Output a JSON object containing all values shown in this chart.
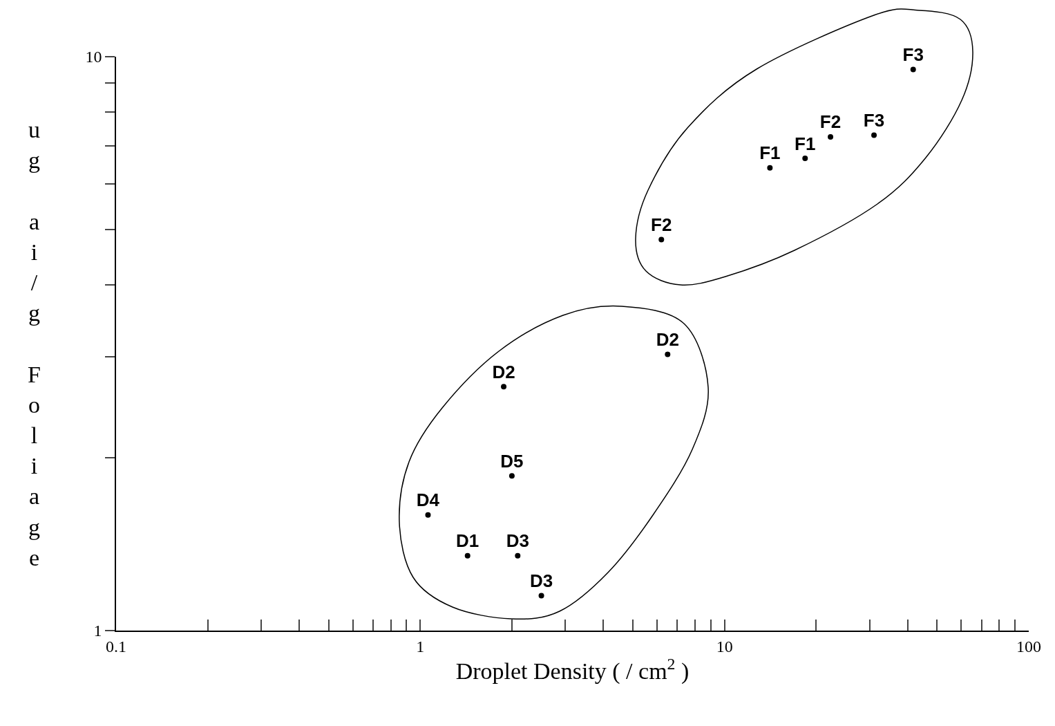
{
  "chart_data": {
    "type": "scatter",
    "xlabel": "Droplet Density ( / cm$^{2}$ )",
    "ylabel": "ug ai/g Foliage",
    "log": "xy",
    "marker": "circle",
    "series": [
      {
        "color": "#000000",
        "x": [
          41.7,
          31.0,
          22.3,
          18.4,
          14.1,
          6.2,
          6.5,
          1.88,
          2.0,
          1.06,
          1.43,
          2.09,
          2.5
        ],
        "values": [
          9.5,
          7.3,
          7.25,
          6.65,
          6.4,
          4.8,
          3.03,
          2.66,
          1.86,
          1.59,
          1.35,
          1.35,
          1.15
        ],
        "value_labels": [
          "F3",
          "F3",
          "F2",
          "F1",
          "F1",
          "F2",
          "D2",
          "D2",
          "D5",
          "D4",
          "D1",
          "D3",
          "D3"
        ]
      }
    ],
    "xlim": [
      0.1,
      100
    ],
    "ylim": [
      1,
      10
    ],
    "xticks": [
      0.1,
      {
        "value": 0.2,
        "label": null
      },
      {
        "value": 0.3,
        "label": null
      },
      {
        "value": 0.4,
        "label": null
      },
      {
        "value": 0.5,
        "label": null
      },
      {
        "value": 0.6,
        "label": null
      },
      {
        "value": 0.7,
        "label": null
      },
      {
        "value": 0.8,
        "label": null
      },
      {
        "value": 0.9,
        "label": null
      },
      1,
      {
        "value": 2,
        "label": null
      },
      {
        "value": 3,
        "label": null
      },
      {
        "value": 4,
        "label": null
      },
      {
        "value": 5,
        "label": null
      },
      {
        "value": 6,
        "label": null
      },
      {
        "value": 7,
        "label": null
      },
      {
        "value": 8,
        "label": null
      },
      {
        "value": 9,
        "label": null
      },
      10,
      {
        "value": 20,
        "label": null
      },
      {
        "value": 30,
        "label": null
      },
      {
        "value": 40,
        "label": null
      },
      {
        "value": 50,
        "label": null
      },
      {
        "value": 60,
        "label": null
      },
      {
        "value": 70,
        "label": null
      },
      {
        "value": 80,
        "label": null
      },
      {
        "value": 90,
        "label": null
      },
      100
    ],
    "yticks": [
      1,
      {
        "value": 2,
        "label": null
      },
      {
        "value": 3,
        "label": null
      },
      {
        "value": 4,
        "label": null
      },
      {
        "value": 5,
        "label": null
      },
      {
        "value": 6,
        "label": null
      },
      {
        "value": 7,
        "label": null
      },
      {
        "value": 8,
        "label": null
      },
      {
        "value": 9,
        "label": null
      },
      10
    ]
  }
}
